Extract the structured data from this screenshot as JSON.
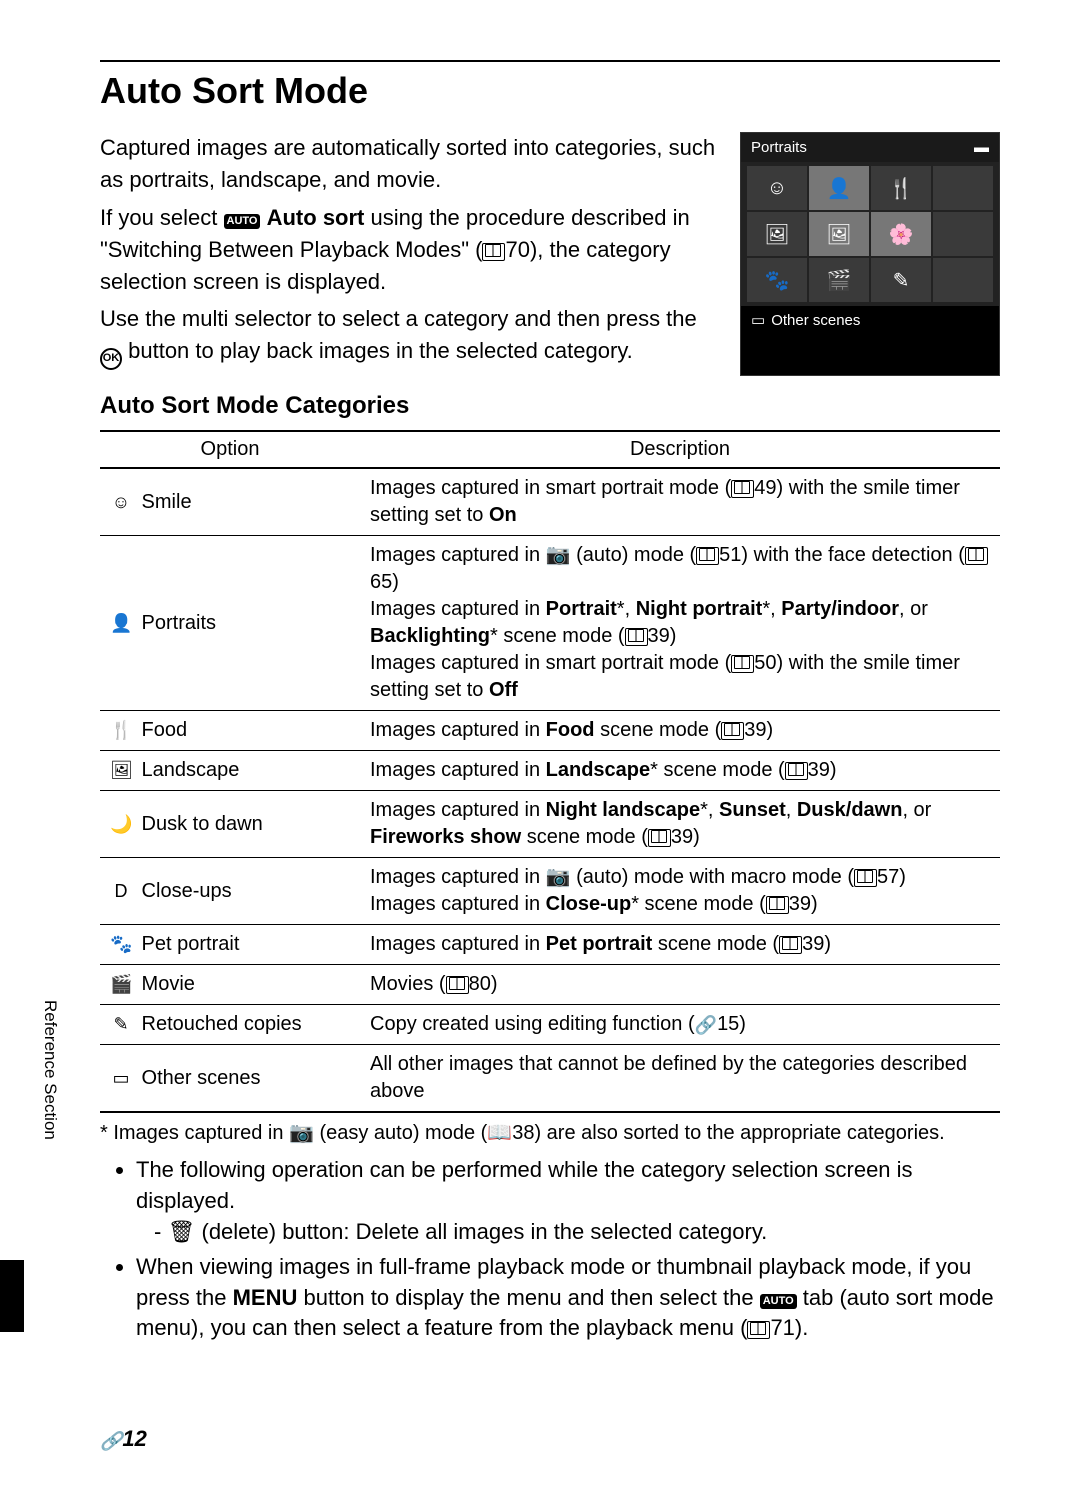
{
  "title": "Auto Sort Mode",
  "intro": {
    "p1": "Captured images are automatically sorted into categories, such as portraits, landscape, and movie.",
    "p2a": "If you select ",
    "p2_modeicon": "AUTO",
    "p2_bold": " Auto sort",
    "p2b": " using the procedure described in \"Switching Between Playback Modes\" (",
    "p2_ref": "70",
    "p2c": "), the category selection screen is displayed.",
    "p3a": "Use the multi selector to select a category and then press the ",
    "p3_ok": "OK",
    "p3b": " button to play back images in the selected category."
  },
  "screenshot": {
    "title": "Portraits",
    "footer_icon": "▭",
    "footer_label": "Other scenes",
    "battery_icon": "▬"
  },
  "subhead": "Auto Sort Mode Categories",
  "table": {
    "headers": {
      "option": "Option",
      "description": "Description"
    },
    "rows": [
      {
        "icon": "☺",
        "name": "Smile",
        "desc_html": "Images captured in smart portrait mode (<span class='book-ref'></span>49) with the smile timer setting set to <b>On</b>"
      },
      {
        "icon": "👤",
        "name": "Portraits",
        "desc_html": "Images captured in <b>📷</b> (auto) mode (<span class='book-ref'></span>51) with the face detection (<span class='book-ref'></span>65)<br>Images captured in <b>Portrait</b>*, <b>Night portrait</b>*, <b>Party/indoor</b>, or <b>Backlighting</b>* scene mode (<span class='book-ref'></span>39)<br>Images captured in smart portrait mode (<span class='book-ref'></span>50) with the smile timer setting set to <b>Off</b>"
      },
      {
        "icon": "🍴",
        "name": "Food",
        "desc_html": "Images captured in <b>Food</b> scene mode (<span class='book-ref'></span>39)"
      },
      {
        "icon": "🖼",
        "name": "Landscape",
        "desc_html": "Images captured in <b>Landscape</b>* scene mode (<span class='book-ref'></span>39)"
      },
      {
        "icon": "🌙",
        "name": "Dusk to dawn",
        "desc_html": "Images captured in <b>Night landscape</b>*, <b>Sunset</b>, <b>Dusk/dawn</b>, or <b>Fireworks show</b> scene mode (<span class='book-ref'></span>39)"
      },
      {
        "icon": "D",
        "name": "Close-ups",
        "desc_html": "Images captured in <b>📷</b> (auto) mode with macro mode (<span class='book-ref'></span>57)<br>Images captured in <b>Close-up</b>* scene mode (<span class='book-ref'></span>39)"
      },
      {
        "icon": "🐾",
        "name": "Pet portrait",
        "desc_html": "Images captured in <b>Pet portrait</b> scene mode (<span class='book-ref'></span>39)"
      },
      {
        "icon": "🎬",
        "name": "Movie",
        "desc_html": "Movies (<span class='book-ref'></span>80)"
      },
      {
        "icon": "✎",
        "name": "Retouched copies",
        "desc_html": "Copy created using editing function (<span class='link-icon'>🔗</span>15)"
      },
      {
        "icon": "▭",
        "name": "Other scenes",
        "desc_html": "All other images that cannot be defined by the categories described above"
      }
    ]
  },
  "footnote": "*  Images captured in 📷 (easy auto) mode (📖38) are also sorted to the appropriate categories.",
  "notes": [
    {
      "text": "The following operation can be performed while the category selection screen is displayed.",
      "sub": "🗑 (delete) button: Delete all images in the selected category."
    },
    {
      "text_html": "When viewing images in full-frame playback mode or thumbnail playback mode, if you press the <b>MENU</b> button to display the menu and then select the <span class='mode-icon'>AUTO</span> tab (auto sort mode menu), you can then select a feature from the playback menu (<span class='book-ref'></span>71)."
    }
  ],
  "side_label": "Reference Section",
  "page_number_prefix": "🔗",
  "page_number": "12"
}
